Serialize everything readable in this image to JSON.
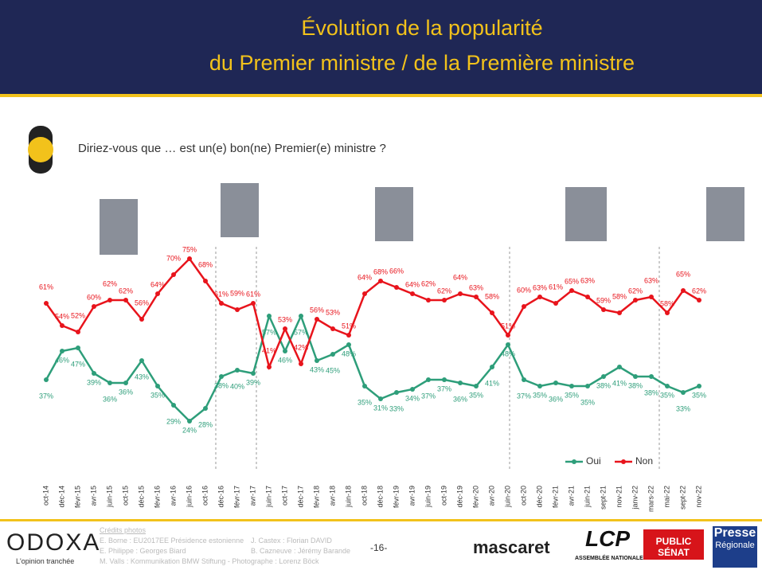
{
  "header": {
    "title": [
      "Évolution de la popularité",
      "du Premier ministre / de la Première ministre"
    ]
  },
  "chart_data": {
    "type": "line",
    "title": "Diriez-vous que … est un(e) bon(ne) Premier(e) ministre ?",
    "categories": [
      "oct-14",
      "déc-14",
      "févr-15",
      "avr-15",
      "juin-15",
      "oct-15",
      "déc-15",
      "févr-16",
      "avr-16",
      "juin-16",
      "oct-16",
      "déc-16",
      "févr-17",
      "avr-17",
      "juin-17",
      "oct-17",
      "déc-17",
      "févr-18",
      "avr-18",
      "juin-18",
      "oct-18",
      "déc-18",
      "févr-19",
      "avr-19",
      "juin-19",
      "oct-19",
      "déc-19",
      "févr-20",
      "avr-20",
      "juin-20",
      "oct-20",
      "déc-20",
      "févr-21",
      "avr-21",
      "juin-21",
      "sept-21",
      "nov-21",
      "janv-22",
      "mars-22",
      "mai-22",
      "sept-22",
      "nov-22"
    ],
    "series": [
      {
        "name": "Oui",
        "color": "#2e9e7a",
        "values": [
          37,
          46,
          47,
          39,
          36,
          36,
          43,
          35,
          29,
          24,
          28,
          38,
          40,
          39,
          57,
          46,
          57,
          43,
          45,
          48,
          35,
          31,
          33,
          34,
          37,
          37,
          36,
          35,
          41,
          48,
          37,
          35,
          36,
          35,
          35,
          38,
          41,
          38,
          38,
          35,
          33,
          35
        ],
        "value_labels": [
          "37%",
          "46%",
          "47%",
          "39%",
          "36%",
          "36%",
          "43%",
          "35%",
          "29%",
          "24%",
          "28%",
          "38%",
          "40%",
          "39%",
          "57%",
          "46%",
          "57%",
          "43%",
          "45%",
          "48%",
          "35%",
          "31%",
          "33%",
          "34%",
          "37%",
          "37%",
          "36%",
          "35%",
          "41%",
          "48%",
          "37%",
          "35%",
          "36%",
          "35%",
          "35%",
          "38%",
          "41%",
          "38%",
          "38%",
          "35%",
          "33%",
          "35%"
        ]
      },
      {
        "name": "Non",
        "color": "#e8141c",
        "values": [
          61,
          54,
          52,
          60,
          62,
          62,
          56,
          64,
          70,
          75,
          68,
          61,
          59,
          61,
          41,
          53,
          42,
          56,
          53,
          51,
          64,
          68,
          66,
          64,
          62,
          62,
          64,
          63,
          58,
          51,
          60,
          63,
          61,
          65,
          63,
          59,
          58,
          62,
          63,
          58,
          65,
          62
        ],
        "value_labels": [
          "61%",
          "54%",
          "52%",
          "60%",
          "62%",
          "62%",
          "56%",
          "64%",
          "70%",
          "75%",
          "68%",
          "61%",
          "59%",
          "61%",
          "41%",
          "53%",
          "42%",
          "56%",
          "53%",
          "51%",
          "64%",
          "68%",
          "66%",
          "64%",
          "62%",
          "62%",
          "64%",
          "63%",
          "58%",
          "51%",
          "60%",
          "63%",
          "61%",
          "65%",
          "63%",
          "59%",
          "58%",
          "62%",
          "63%",
          "58%",
          "65%",
          "62%"
        ]
      }
    ],
    "legend": "bottom-right"
  },
  "footer": {
    "credits": [
      "Crédits photos",
      "E. Borne : EU2017EE Présidence estonienne",
      "E. Philippe : Georges Biard",
      "M. Valls : Kommunikation BMW Stiftung - Photographe : Lorenz Böck",
      "J. Castex : Florian DAVID",
      "B. Cazneuve : Jérémy Barande"
    ],
    "page": "-16-",
    "brand": "ODOXA",
    "tagline": "L'opinion tranchée",
    "logos": [
      "mascaret",
      "LCP",
      "ASSEMBLÉE NATIONALE",
      "PUBLIC SÉNAT",
      "Presse",
      "Régionale"
    ]
  }
}
